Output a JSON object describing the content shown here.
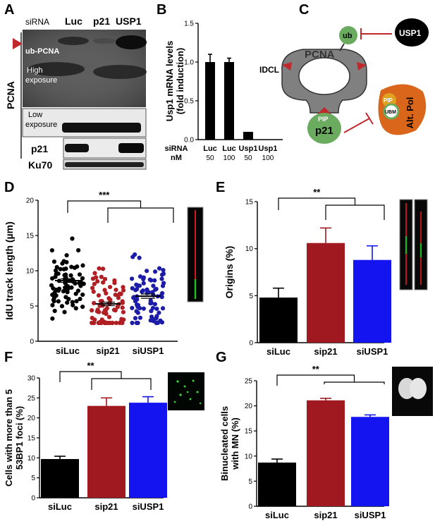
{
  "panels": {
    "A": "A",
    "B": "B",
    "C": "C",
    "D": "D",
    "E": "E",
    "F": "F",
    "G": "G"
  },
  "panel_a": {
    "sirna_label": "siRNA",
    "lanes": [
      "Luc",
      "p21",
      "USP1"
    ],
    "group_label": "PCNA",
    "ub_pcna": "ub-PCNA",
    "high_exposure": [
      "High",
      "exposure"
    ],
    "low_exposure": [
      "Low",
      "exposure"
    ],
    "row_p21": "p21",
    "row_ku70": "Ku70",
    "arrow_color": "#c0282d"
  },
  "panel_c": {
    "pcna": "PCNA",
    "ub": "ub",
    "usp1": "USP1",
    "idcl": "IDCL",
    "pip1": "PIP",
    "p21": "p21",
    "pip2": "PIP",
    "ubm": "UBM",
    "altpol": "Alt. Pol",
    "colors": {
      "pcna": "#808080",
      "green": "#6aab5f",
      "orange": "#d9661a",
      "red": "#c0282d",
      "black": "#000000"
    }
  },
  "chart_data": [
    {
      "panel": "B",
      "type": "bar",
      "ylabel": "Usp1 mRNA levels (fold induction)",
      "ylim": [
        0,
        1.5
      ],
      "yticks": [
        "0.0",
        "0.5",
        "1.0",
        "1.5"
      ],
      "row_labels": [
        "siRNA",
        "nM"
      ],
      "categories": [
        "Luc",
        "Luc",
        "Usp1",
        "Usp1"
      ],
      "sub_categories": [
        "50",
        "100",
        "50",
        "100"
      ],
      "values": [
        1.0,
        1.0,
        0.1,
        0.0
      ],
      "errors": [
        0.1,
        0.05,
        0.0,
        0.0
      ],
      "color": "#000000"
    },
    {
      "panel": "D",
      "type": "scatter",
      "ylabel": "IdU track length (µm)",
      "ylim": [
        0,
        20
      ],
      "yticks": [
        "0",
        "5",
        "10",
        "15",
        "20"
      ],
      "categories": [
        "siLuc",
        "sip21",
        "siUSP1"
      ],
      "means": [
        8.6,
        5.3,
        6.4
      ],
      "sems": [
        0.25,
        0.25,
        0.3
      ],
      "colors": [
        "#000000",
        "#b01f24",
        "#1c1ca8"
      ],
      "significance": "***"
    },
    {
      "panel": "E",
      "type": "bar",
      "ylabel": "Origins (%)",
      "ylim": [
        0,
        15
      ],
      "yticks": [
        "0",
        "5",
        "10",
        "15"
      ],
      "categories": [
        "siLuc",
        "sip21",
        "siUSP1"
      ],
      "values": [
        4.8,
        10.6,
        8.8
      ],
      "errors": [
        1.0,
        1.6,
        1.5
      ],
      "colors": [
        "#000000",
        "#a01820",
        "#1414f0"
      ],
      "significance": "**"
    },
    {
      "panel": "F",
      "type": "bar",
      "ylabel": "Cells with more than 5 53BP1 foci (%)",
      "ylim": [
        0,
        30
      ],
      "yticks": [
        "0",
        "5",
        "10",
        "15",
        "20",
        "25",
        "30"
      ],
      "categories": [
        "siLuc",
        "sip21",
        "siUSP1"
      ],
      "values": [
        9.7,
        23.0,
        23.8
      ],
      "errors": [
        0.7,
        2.0,
        1.5
      ],
      "colors": [
        "#000000",
        "#a01820",
        "#1414f0"
      ],
      "significance": "**"
    },
    {
      "panel": "G",
      "type": "bar",
      "ylabel": "Binucleated cells with MN (%)",
      "ylim": [
        0,
        25
      ],
      "yticks": [
        "0",
        "5",
        "10",
        "15",
        "20",
        "25"
      ],
      "categories": [
        "siLuc",
        "sip21",
        "siUSP1"
      ],
      "values": [
        8.7,
        21.1,
        17.8
      ],
      "errors": [
        0.7,
        0.4,
        0.4
      ],
      "colors": [
        "#000000",
        "#a01820",
        "#1414f0"
      ],
      "significance": "**"
    }
  ]
}
